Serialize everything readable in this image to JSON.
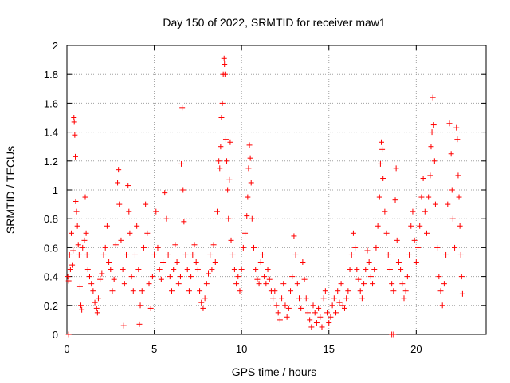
{
  "chart_data": {
    "type": "scatter",
    "title": "Day 150 of 2022, SRMTID for receiver maw1",
    "xlabel": "GPS time / hours",
    "ylabel": "SRMTID / TECUs",
    "xlim": [
      0,
      24
    ],
    "ylim": [
      0,
      2
    ],
    "xticks": [
      0,
      5,
      10,
      15,
      20
    ],
    "xtick_labels": [
      "0",
      "5",
      "10",
      "15",
      "20"
    ],
    "yticks": [
      0,
      0.2,
      0.4,
      0.6,
      0.8,
      1,
      1.2,
      1.4,
      1.6,
      1.8,
      2
    ],
    "ytick_labels": [
      "0",
      "0.2",
      "0.4",
      "0.6",
      "0.8",
      "1",
      "1.2",
      "1.4",
      "1.6",
      "1.8",
      "2"
    ],
    "grid": true,
    "marker": "+",
    "series_color": "#ff0000",
    "series": [
      {
        "name": "SRMTID",
        "points": [
          [
            0.05,
            0.4
          ],
          [
            0.1,
            0.37
          ],
          [
            0.15,
            0.55
          ],
          [
            0.2,
            0.45
          ],
          [
            0.25,
            0.7
          ],
          [
            0.3,
            0.48
          ],
          [
            0.35,
            0.58
          ],
          [
            0.4,
            1.5
          ],
          [
            0.42,
            1.47
          ],
          [
            0.45,
            1.38
          ],
          [
            0.48,
            1.23
          ],
          [
            0.5,
            0.92
          ],
          [
            0.55,
            0.85
          ],
          [
            0.6,
            0.75
          ],
          [
            0.65,
            0.62
          ],
          [
            0.7,
            0.55
          ],
          [
            0.75,
            0.33
          ],
          [
            0.8,
            0.2
          ],
          [
            0.85,
            0.17
          ],
          [
            0.9,
            0.6
          ],
          [
            1.0,
            0.65
          ],
          [
            1.05,
            0.95
          ],
          [
            1.1,
            0.7
          ],
          [
            1.15,
            0.55
          ],
          [
            1.2,
            0.45
          ],
          [
            1.3,
            0.4
          ],
          [
            1.4,
            0.35
          ],
          [
            1.5,
            0.3
          ],
          [
            1.6,
            0.22
          ],
          [
            1.7,
            0.18
          ],
          [
            1.75,
            0.15
          ],
          [
            1.8,
            0.25
          ],
          [
            1.9,
            0.38
          ],
          [
            2.0,
            0.42
          ],
          [
            2.1,
            0.55
          ],
          [
            2.2,
            0.6
          ],
          [
            2.3,
            0.75
          ],
          [
            2.4,
            0.5
          ],
          [
            2.5,
            0.45
          ],
          [
            2.6,
            0.3
          ],
          [
            2.7,
            0.38
          ],
          [
            2.8,
            0.62
          ],
          [
            2.9,
            1.05
          ],
          [
            2.95,
            1.14
          ],
          [
            3.0,
            0.9
          ],
          [
            3.1,
            0.65
          ],
          [
            3.2,
            0.45
          ],
          [
            3.25,
            0.06
          ],
          [
            3.3,
            0.35
          ],
          [
            3.4,
            0.55
          ],
          [
            3.5,
            1.03
          ],
          [
            3.55,
            0.85
          ],
          [
            3.6,
            0.7
          ],
          [
            3.7,
            0.4
          ],
          [
            3.8,
            0.3
          ],
          [
            3.9,
            0.55
          ],
          [
            4.0,
            0.75
          ],
          [
            4.1,
            0.45
          ],
          [
            4.15,
            0.07
          ],
          [
            4.2,
            0.2
          ],
          [
            4.3,
            0.3
          ],
          [
            4.4,
            0.6
          ],
          [
            4.5,
            0.9
          ],
          [
            4.6,
            0.7
          ],
          [
            4.7,
            0.35
          ],
          [
            4.8,
            0.18
          ],
          [
            4.9,
            0.4
          ],
          [
            5.0,
            0.55
          ],
          [
            5.1,
            0.85
          ],
          [
            5.2,
            0.6
          ],
          [
            5.3,
            0.45
          ],
          [
            5.4,
            0.38
          ],
          [
            5.5,
            0.5
          ],
          [
            5.6,
            0.98
          ],
          [
            5.7,
            0.8
          ],
          [
            5.8,
            0.55
          ],
          [
            5.9,
            0.4
          ],
          [
            6.0,
            0.3
          ],
          [
            6.1,
            0.45
          ],
          [
            6.2,
            0.62
          ],
          [
            6.3,
            0.5
          ],
          [
            6.4,
            0.35
          ],
          [
            6.5,
            0.4
          ],
          [
            6.55,
            1.18
          ],
          [
            6.6,
            1.57
          ],
          [
            6.65,
            1.0
          ],
          [
            6.7,
            0.78
          ],
          [
            6.8,
            0.55
          ],
          [
            6.9,
            0.45
          ],
          [
            7.0,
            0.3
          ],
          [
            7.1,
            0.4
          ],
          [
            7.2,
            0.55
          ],
          [
            7.3,
            0.62
          ],
          [
            7.4,
            0.5
          ],
          [
            7.5,
            0.45
          ],
          [
            7.6,
            0.3
          ],
          [
            7.7,
            0.22
          ],
          [
            7.8,
            0.18
          ],
          [
            7.9,
            0.25
          ],
          [
            8.0,
            0.35
          ],
          [
            8.1,
            0.42
          ],
          [
            8.2,
            0.55
          ],
          [
            8.3,
            0.45
          ],
          [
            8.4,
            0.62
          ],
          [
            8.5,
            0.5
          ],
          [
            8.6,
            0.85
          ],
          [
            8.7,
            1.2
          ],
          [
            8.75,
            1.15
          ],
          [
            8.8,
            1.3
          ],
          [
            8.85,
            1.5
          ],
          [
            8.9,
            1.6
          ],
          [
            8.95,
            1.8
          ],
          [
            9.0,
            1.91
          ],
          [
            9.02,
            1.87
          ],
          [
            9.05,
            1.8
          ],
          [
            9.1,
            1.35
          ],
          [
            9.15,
            1.2
          ],
          [
            9.2,
            1.0
          ],
          [
            9.25,
            0.8
          ],
          [
            9.3,
            1.07
          ],
          [
            9.35,
            1.33
          ],
          [
            9.4,
            0.65
          ],
          [
            9.5,
            0.55
          ],
          [
            9.6,
            0.45
          ],
          [
            9.7,
            0.35
          ],
          [
            9.8,
            0.4
          ],
          [
            9.9,
            0.3
          ],
          [
            10.0,
            0.45
          ],
          [
            10.1,
            0.6
          ],
          [
            10.2,
            0.7
          ],
          [
            10.3,
            0.82
          ],
          [
            10.35,
            0.95
          ],
          [
            10.4,
            1.15
          ],
          [
            10.45,
            1.31
          ],
          [
            10.5,
            1.22
          ],
          [
            10.55,
            1.05
          ],
          [
            10.6,
            0.8
          ],
          [
            10.7,
            0.6
          ],
          [
            10.8,
            0.45
          ],
          [
            10.9,
            0.38
          ],
          [
            11.0,
            0.35
          ],
          [
            11.1,
            0.5
          ],
          [
            11.2,
            0.55
          ],
          [
            11.3,
            0.4
          ],
          [
            11.4,
            0.35
          ],
          [
            11.5,
            0.45
          ],
          [
            11.6,
            0.38
          ],
          [
            11.7,
            0.3
          ],
          [
            11.8,
            0.25
          ],
          [
            11.9,
            0.3
          ],
          [
            12.0,
            0.2
          ],
          [
            12.1,
            0.15
          ],
          [
            12.2,
            0.1
          ],
          [
            12.3,
            0.25
          ],
          [
            12.4,
            0.35
          ],
          [
            12.5,
            0.2
          ],
          [
            12.6,
            0.12
          ],
          [
            12.7,
            0.18
          ],
          [
            12.8,
            0.3
          ],
          [
            12.9,
            0.4
          ],
          [
            13.0,
            0.68
          ],
          [
            13.1,
            0.55
          ],
          [
            13.2,
            0.35
          ],
          [
            13.3,
            0.25
          ],
          [
            13.4,
            0.18
          ],
          [
            13.5,
            0.5
          ],
          [
            13.6,
            0.38
          ],
          [
            13.7,
            0.25
          ],
          [
            13.8,
            0.15
          ],
          [
            13.9,
            0.1
          ],
          [
            14.0,
            0.05
          ],
          [
            14.1,
            0.2
          ],
          [
            14.2,
            0.15
          ],
          [
            14.3,
            0.08
          ],
          [
            14.4,
            0.18
          ],
          [
            14.5,
            0.12
          ],
          [
            14.6,
            0.05
          ],
          [
            14.7,
            0.25
          ],
          [
            14.8,
            0.3
          ],
          [
            14.9,
            0.15
          ],
          [
            15.0,
            0.08
          ],
          [
            15.1,
            0.12
          ],
          [
            15.2,
            0.2
          ],
          [
            15.3,
            0.25
          ],
          [
            15.4,
            0.15
          ],
          [
            15.5,
            0.3
          ],
          [
            15.6,
            0.22
          ],
          [
            15.7,
            0.35
          ],
          [
            15.8,
            0.2
          ],
          [
            15.9,
            0.18
          ],
          [
            16.0,
            0.25
          ],
          [
            16.1,
            0.3
          ],
          [
            16.2,
            0.45
          ],
          [
            16.3,
            0.55
          ],
          [
            16.4,
            0.7
          ],
          [
            16.5,
            0.6
          ],
          [
            16.6,
            0.45
          ],
          [
            16.7,
            0.38
          ],
          [
            16.8,
            0.3
          ],
          [
            16.9,
            0.25
          ],
          [
            17.0,
            0.35
          ],
          [
            17.1,
            0.45
          ],
          [
            17.2,
            0.58
          ],
          [
            17.3,
            0.5
          ],
          [
            17.4,
            0.4
          ],
          [
            17.5,
            0.35
          ],
          [
            17.6,
            0.45
          ],
          [
            17.7,
            0.6
          ],
          [
            17.8,
            0.75
          ],
          [
            17.9,
            0.95
          ],
          [
            17.95,
            1.18
          ],
          [
            18.0,
            1.33
          ],
          [
            18.05,
            1.28
          ],
          [
            18.1,
            1.08
          ],
          [
            18.2,
            0.85
          ],
          [
            18.3,
            0.7
          ],
          [
            18.4,
            0.55
          ],
          [
            18.5,
            0.45
          ],
          [
            18.6,
            0.35
          ],
          [
            18.7,
            0.3
          ],
          [
            18.8,
            0.93
          ],
          [
            18.85,
            1.15
          ],
          [
            18.9,
            0.65
          ],
          [
            19.0,
            0.5
          ],
          [
            19.1,
            0.45
          ],
          [
            19.2,
            0.35
          ],
          [
            19.3,
            0.25
          ],
          [
            19.4,
            0.3
          ],
          [
            19.5,
            0.4
          ],
          [
            19.6,
            0.55
          ],
          [
            19.7,
            0.75
          ],
          [
            19.8,
            0.85
          ],
          [
            19.9,
            0.65
          ],
          [
            20.0,
            0.5
          ],
          [
            20.1,
            0.6
          ],
          [
            20.2,
            0.75
          ],
          [
            20.3,
            0.95
          ],
          [
            20.4,
            1.08
          ],
          [
            20.5,
            0.85
          ],
          [
            20.6,
            0.7
          ],
          [
            20.7,
            0.95
          ],
          [
            20.8,
            1.1
          ],
          [
            20.85,
            1.3
          ],
          [
            20.9,
            1.4
          ],
          [
            20.95,
            1.64
          ],
          [
            21.0,
            1.45
          ],
          [
            21.05,
            1.2
          ],
          [
            21.1,
            0.9
          ],
          [
            21.2,
            0.6
          ],
          [
            21.3,
            0.4
          ],
          [
            21.4,
            0.3
          ],
          [
            21.5,
            0.2
          ],
          [
            21.6,
            0.35
          ],
          [
            21.7,
            0.55
          ],
          [
            21.8,
            0.9
          ],
          [
            21.9,
            1.46
          ],
          [
            22.0,
            1.25
          ],
          [
            22.05,
            1.0
          ],
          [
            22.1,
            0.8
          ],
          [
            22.2,
            0.6
          ],
          [
            22.3,
            1.43
          ],
          [
            22.35,
            1.35
          ],
          [
            22.4,
            1.1
          ],
          [
            22.45,
            0.95
          ],
          [
            22.5,
            0.75
          ],
          [
            22.55,
            0.55
          ],
          [
            22.6,
            0.4
          ],
          [
            22.65,
            0.28
          ],
          [
            18.6,
            0.0
          ],
          [
            18.7,
            0.0
          ],
          [
            0.1,
            0.0
          ]
        ]
      }
    ]
  }
}
